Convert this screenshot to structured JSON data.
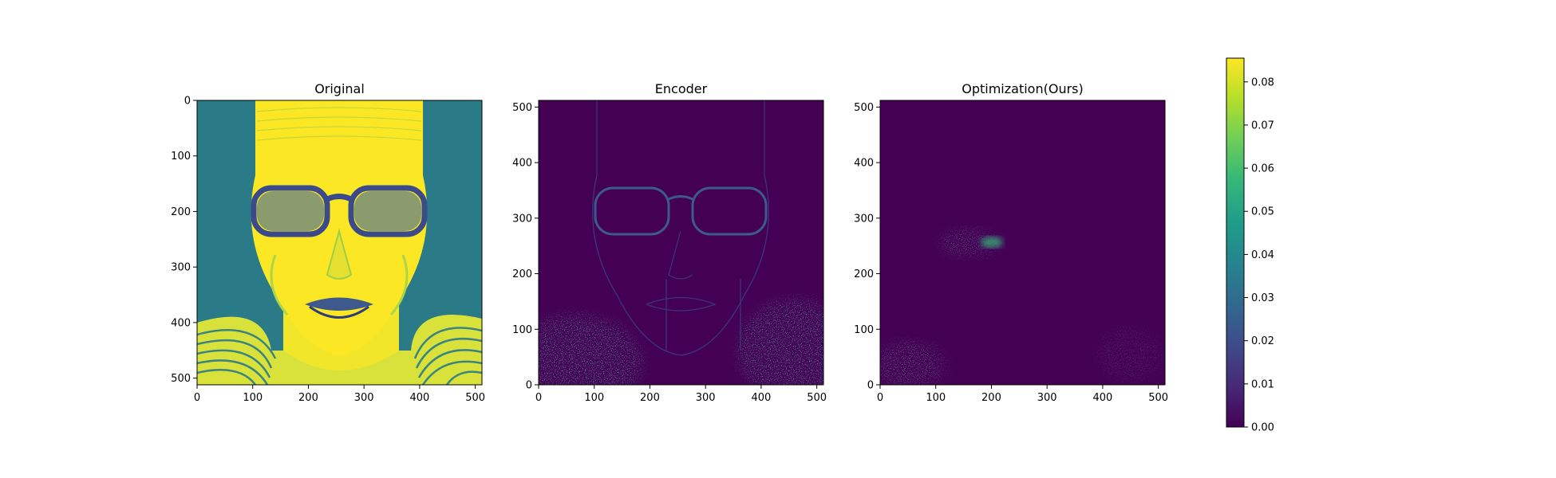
{
  "chart_data": {
    "type": "heatmap",
    "panels": [
      {
        "title": "Original",
        "x_ticks": [
          0,
          100,
          200,
          300,
          400,
          500
        ],
        "y_ticks": [
          0,
          100,
          200,
          300,
          400,
          500
        ],
        "y_axis_direction": "top-to-bottom",
        "xlim": [
          0,
          512
        ],
        "ylim": [
          512,
          0
        ]
      },
      {
        "title": "Encoder",
        "x_ticks": [
          0,
          100,
          200,
          300,
          400,
          500
        ],
        "y_ticks": [
          0,
          100,
          200,
          300,
          400,
          500
        ],
        "y_axis_direction": "bottom-to-top",
        "xlim": [
          0,
          512
        ],
        "ylim": [
          0,
          512
        ]
      },
      {
        "title": "Optimization(Ours)",
        "x_ticks": [
          0,
          100,
          200,
          300,
          400,
          500
        ],
        "y_ticks": [
          0,
          100,
          200,
          300,
          400,
          500
        ],
        "y_axis_direction": "bottom-to-top",
        "xlim": [
          0,
          512
        ],
        "ylim": [
          0,
          512
        ]
      }
    ],
    "colorbar": {
      "colormap": "viridis",
      "range": [
        0.0,
        0.0855
      ],
      "ticks": [
        "0.00",
        "0.01",
        "0.02",
        "0.03",
        "0.04",
        "0.05",
        "0.06",
        "0.07",
        "0.08"
      ],
      "colors": [
        "#440154",
        "#482878",
        "#3e4a89",
        "#31688e",
        "#26828e",
        "#1f9e89",
        "#35b779",
        "#6ece58",
        "#b5de2b",
        "#fde725"
      ]
    },
    "grid": false
  }
}
